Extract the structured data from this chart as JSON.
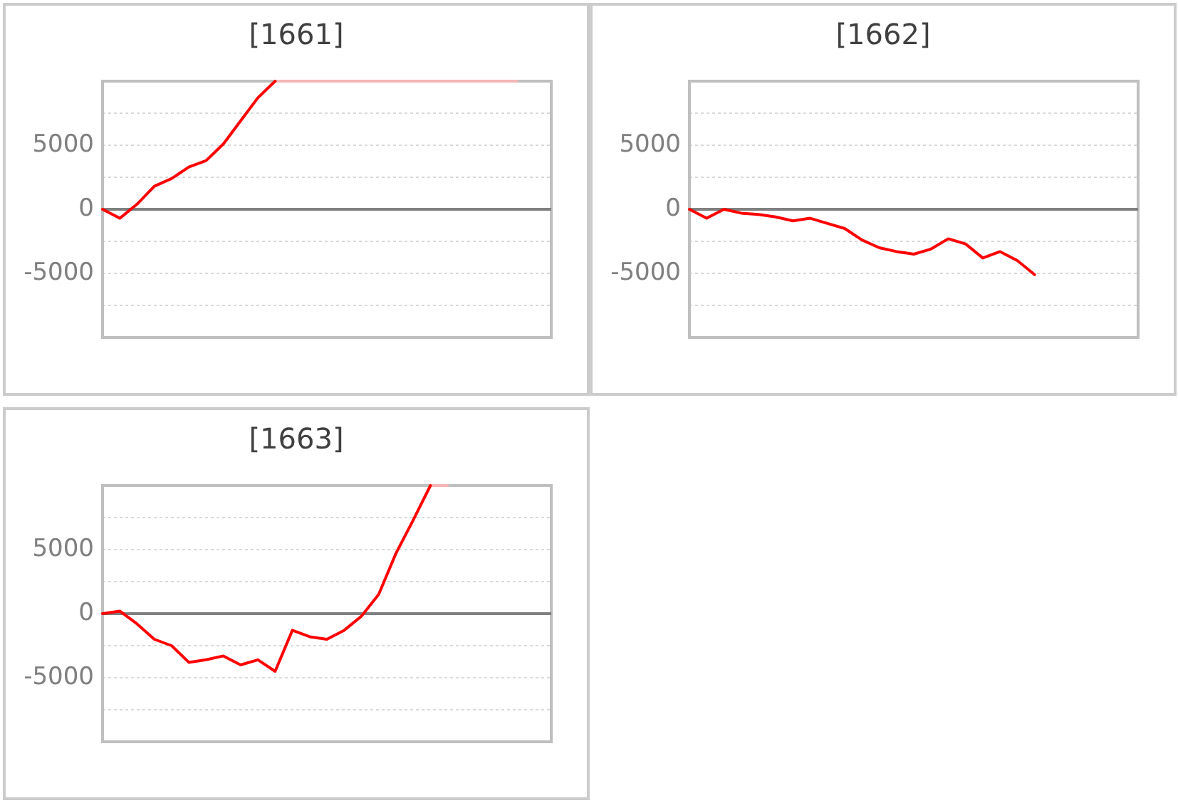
{
  "chart_data": [
    {
      "type": "line",
      "title": "[1661]",
      "categories": [
        null,
        null,
        null,
        null,
        null,
        null,
        null,
        null,
        null,
        null,
        null,
        null,
        null,
        null,
        null,
        null,
        null,
        null,
        null,
        null,
        null,
        null,
        null,
        null,
        null,
        null,
        null
      ],
      "series": [
        {
          "color": "#ff0000",
          "values": [
            0,
            -700,
            400,
            1800,
            2400,
            3300,
            3800,
            5100,
            6900,
            8700,
            10000,
            null,
            null,
            null,
            null,
            null,
            null,
            null,
            null,
            null,
            null,
            null,
            null,
            null,
            null,
            null,
            null
          ]
        },
        {
          "color": "#f4b6b6",
          "values": [
            null,
            null,
            null,
            null,
            null,
            null,
            null,
            null,
            null,
            null,
            10000,
            10000,
            10000,
            10000,
            10000,
            10000,
            10000,
            10000,
            10000,
            10000,
            10000,
            10000,
            10000,
            10000,
            10000,
            null,
            null
          ]
        }
      ],
      "ylim": [
        -10000,
        10000
      ],
      "yticks": [
        {
          "value": -10000,
          "label": null
        },
        {
          "value": -7500,
          "label": null
        },
        -5000,
        {
          "value": -2500,
          "label": null
        },
        0,
        {
          "value": 2500,
          "label": null
        },
        5000,
        {
          "value": 7500,
          "label": null
        },
        {
          "value": 10000,
          "label": null
        }
      ],
      "grid": "y",
      "tick_labels": "y",
      "marker": "none",
      "ref_lines": [
        {
          "axis": "y",
          "value": 0,
          "color": "#808080"
        }
      ]
    },
    {
      "type": "line",
      "title": "[1662]",
      "categories": [
        null,
        null,
        null,
        null,
        null,
        null,
        null,
        null,
        null,
        null,
        null,
        null,
        null,
        null,
        null,
        null,
        null,
        null,
        null,
        null,
        null,
        null,
        null,
        null,
        null,
        null,
        null
      ],
      "series": [
        {
          "color": "#ff0000",
          "values": [
            0,
            -700,
            0,
            -300,
            -400,
            -600,
            -900,
            -700,
            -1100,
            -1500,
            -2400,
            -3000,
            -3300,
            -3500,
            -3100,
            -2300,
            -2700,
            -3800,
            -3300,
            -4000,
            -5100,
            null,
            null,
            null,
            null,
            null,
            null
          ]
        }
      ],
      "ylim": [
        -10000,
        10000
      ],
      "yticks": [
        {
          "value": -10000,
          "label": null
        },
        {
          "value": -7500,
          "label": null
        },
        -5000,
        {
          "value": -2500,
          "label": null
        },
        0,
        {
          "value": 2500,
          "label": null
        },
        5000,
        {
          "value": 7500,
          "label": null
        },
        {
          "value": 10000,
          "label": null
        }
      ],
      "grid": "y",
      "tick_labels": "y",
      "marker": "none",
      "ref_lines": [
        {
          "axis": "y",
          "value": 0,
          "color": "#808080"
        }
      ]
    },
    {
      "type": "line",
      "title": "[1663]",
      "categories": [
        null,
        null,
        null,
        null,
        null,
        null,
        null,
        null,
        null,
        null,
        null,
        null,
        null,
        null,
        null,
        null,
        null,
        null,
        null,
        null,
        null,
        null,
        null,
        null,
        null,
        null,
        null
      ],
      "series": [
        {
          "color": "#ff0000",
          "values": [
            0,
            200,
            -800,
            -2000,
            -2500,
            -3800,
            -3600,
            -3300,
            -4000,
            -3600,
            -4500,
            -1300,
            -1800,
            -2000,
            -1300,
            -200,
            1500,
            4700,
            7300,
            10000,
            null,
            null,
            null,
            null,
            null,
            null,
            null
          ]
        },
        {
          "color": "#f4b6b6",
          "values": [
            null,
            null,
            null,
            null,
            null,
            null,
            null,
            null,
            null,
            null,
            null,
            null,
            null,
            null,
            null,
            null,
            null,
            null,
            null,
            10000,
            10000,
            null,
            null,
            null,
            null,
            null,
            null
          ]
        }
      ],
      "ylim": [
        -10000,
        10000
      ],
      "yticks": [
        {
          "value": -10000,
          "label": null
        },
        {
          "value": -7500,
          "label": null
        },
        -5000,
        {
          "value": -2500,
          "label": null
        },
        0,
        {
          "value": 2500,
          "label": null
        },
        5000,
        {
          "value": 7500,
          "label": null
        },
        {
          "value": 10000,
          "label": null
        }
      ],
      "grid": "y",
      "tick_labels": "y",
      "marker": "none",
      "ref_lines": [
        {
          "axis": "y",
          "value": 0,
          "color": "#808080"
        }
      ]
    }
  ]
}
